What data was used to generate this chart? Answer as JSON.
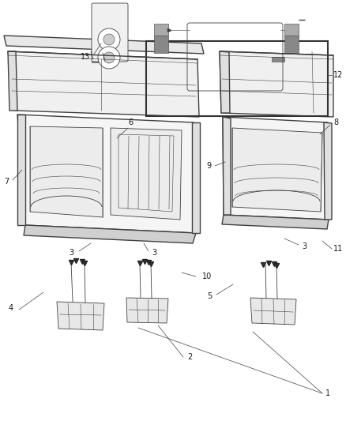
{
  "background_color": "#ffffff",
  "line_color": "#404040",
  "label_color": "#1a1a1a",
  "fig_width": 4.38,
  "fig_height": 5.33,
  "dpi": 100,
  "label_fontsize": 7.0
}
